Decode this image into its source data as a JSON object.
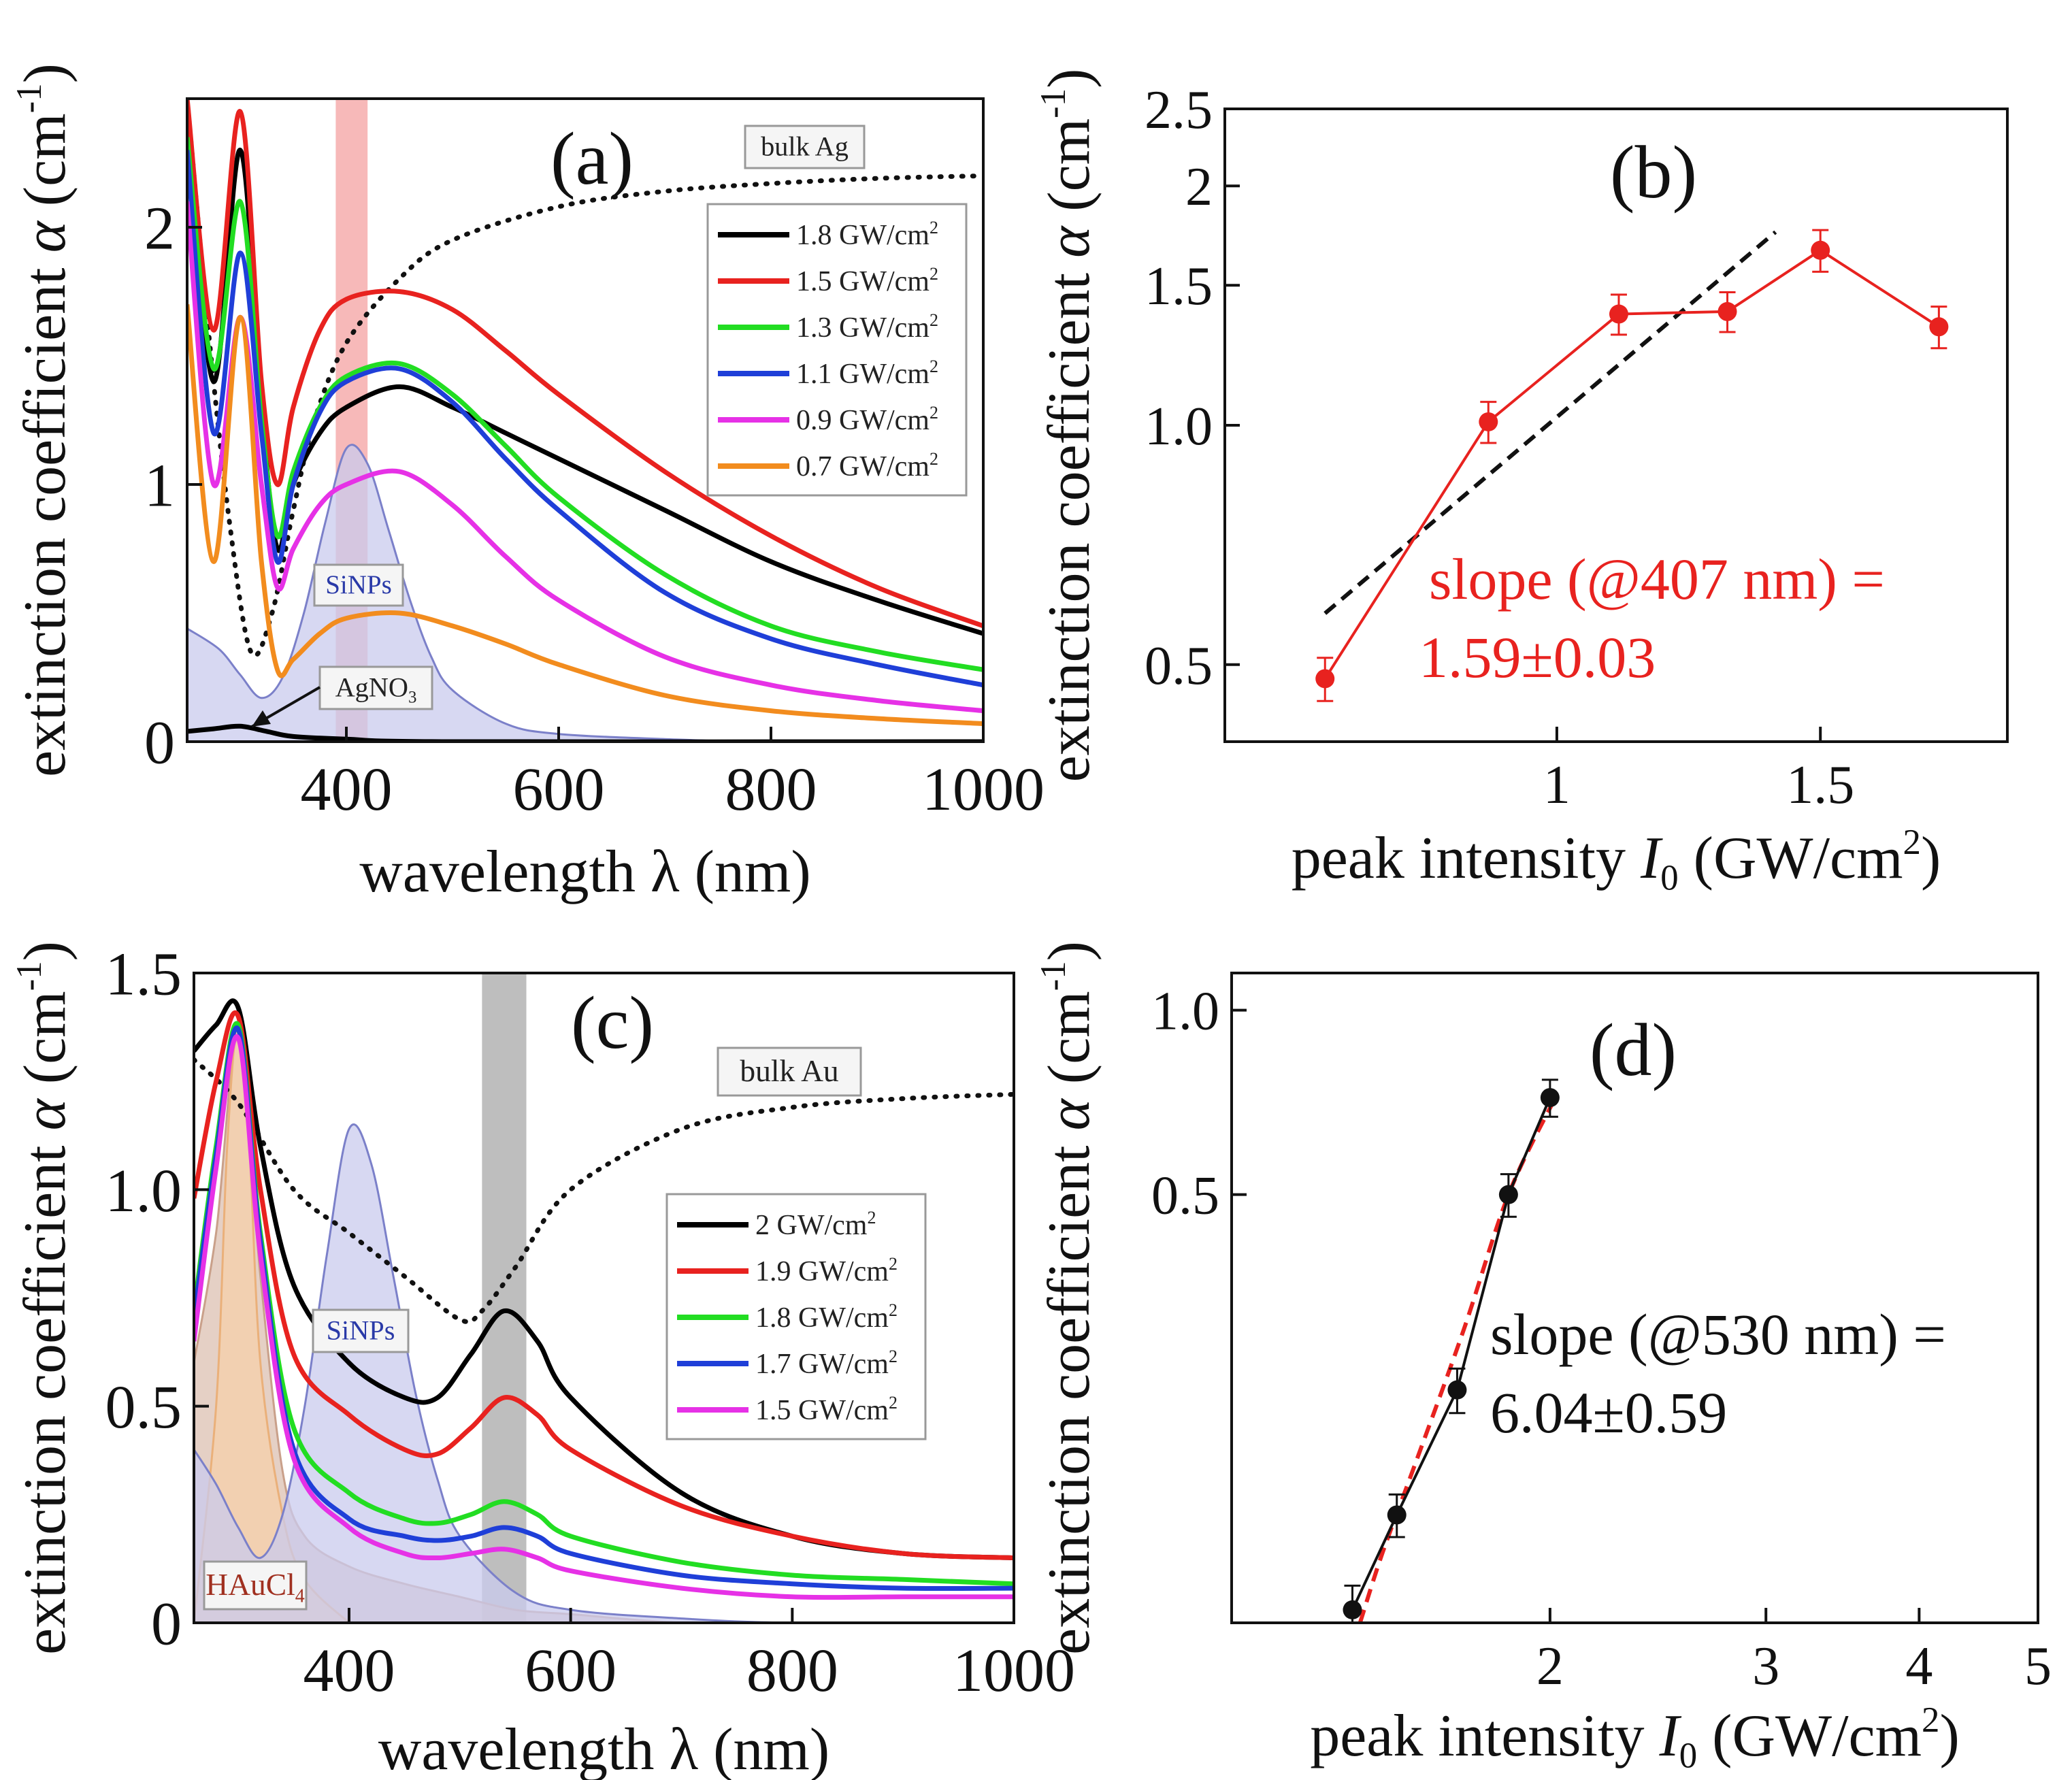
{
  "chart_data": [
    {
      "panel": "a",
      "type": "line",
      "panel_label": "(a)",
      "xlabel": "wavelength λ (nm)",
      "ylabel_main": "extinction coefficient ",
      "ylabel_italic": "α",
      "ylabel_unit": " (cm",
      "ylabel_sup": "-1",
      "ylabel_close": ")",
      "xlim": [
        250,
        1000
      ],
      "ylim": [
        0,
        2.5
      ],
      "xticks": [
        400,
        600,
        800,
        1000
      ],
      "xtick_labels": [
        "400",
        "600",
        "800",
        "1000"
      ],
      "yticks": [
        0,
        1,
        2
      ],
      "ytick_labels": [
        "0",
        "1",
        "2"
      ],
      "highlight_band": [
        390,
        420
      ],
      "highlight_color": "#f08080",
      "annotations": {
        "bulk": "bulk Ag",
        "nps": "SiNPs",
        "precursor": "AgNO",
        "precursor_sub": "3"
      },
      "reference": {
        "name": "bulk Ag",
        "style": "dotted",
        "color": "#111111",
        "x": [
          250,
          270,
          290,
          310,
          330,
          350,
          370,
          400,
          450,
          500,
          600,
          700,
          800,
          900,
          1000
        ],
        "y": [
          2.5,
          1.6,
          0.85,
          0.35,
          0.5,
          0.9,
          1.25,
          1.55,
          1.8,
          1.95,
          2.08,
          2.14,
          2.17,
          2.19,
          2.2
        ]
      },
      "filled_curves": [
        {
          "name": "SiNPs",
          "color": "#7b80c9",
          "fill": "#c9cbee",
          "x": [
            250,
            280,
            300,
            320,
            340,
            360,
            380,
            400,
            420,
            440,
            460,
            480,
            500,
            550,
            600,
            700,
            800,
            1000
          ],
          "y": [
            0.44,
            0.36,
            0.26,
            0.17,
            0.25,
            0.5,
            0.85,
            1.14,
            1.08,
            0.82,
            0.55,
            0.33,
            0.2,
            0.07,
            0.03,
            0.01,
            0.0,
            0.0
          ]
        }
      ],
      "series": [
        {
          "name": "1.8 GW/cm",
          "sup": "2",
          "color": "#000000",
          "x": [
            250,
            275,
            300,
            320,
            335,
            350,
            375,
            400,
            450,
            500,
            550,
            600,
            700,
            800,
            900,
            1000
          ],
          "y": [
            2.4,
            1.4,
            2.3,
            1.3,
            0.75,
            1.0,
            1.2,
            1.3,
            1.38,
            1.3,
            1.2,
            1.1,
            0.9,
            0.7,
            0.55,
            0.42
          ]
        },
        {
          "name": "1.5 GW/cm",
          "sup": "2",
          "color": "#e8221f",
          "x": [
            250,
            275,
            300,
            320,
            335,
            350,
            375,
            400,
            450,
            500,
            550,
            600,
            700,
            800,
            900,
            1000
          ],
          "y": [
            2.5,
            1.6,
            2.45,
            1.4,
            1.0,
            1.3,
            1.6,
            1.72,
            1.75,
            1.68,
            1.52,
            1.35,
            1.05,
            0.8,
            0.6,
            0.45
          ]
        },
        {
          "name": "1.3 GW/cm",
          "sup": "2",
          "color": "#22dd22",
          "x": [
            250,
            275,
            300,
            320,
            335,
            350,
            375,
            400,
            450,
            500,
            550,
            600,
            700,
            800,
            900,
            1000
          ],
          "y": [
            2.35,
            1.45,
            2.1,
            1.25,
            0.8,
            1.05,
            1.3,
            1.42,
            1.47,
            1.35,
            1.15,
            0.95,
            0.65,
            0.45,
            0.35,
            0.28
          ]
        },
        {
          "name": "1.1 GW/cm",
          "sup": "2",
          "color": "#1f3fd8",
          "x": [
            250,
            275,
            300,
            320,
            335,
            350,
            375,
            400,
            450,
            500,
            550,
            600,
            700,
            800,
            900,
            1000
          ],
          "y": [
            2.3,
            1.2,
            1.9,
            1.2,
            0.7,
            1.0,
            1.28,
            1.4,
            1.45,
            1.32,
            1.1,
            0.9,
            0.58,
            0.4,
            0.3,
            0.22
          ]
        },
        {
          "name": "0.9 GW/cm",
          "sup": "2",
          "color": "#e631e6",
          "x": [
            250,
            275,
            300,
            320,
            335,
            350,
            375,
            400,
            450,
            500,
            550,
            600,
            700,
            800,
            900,
            1000
          ],
          "y": [
            2.1,
            1.0,
            1.65,
            1.0,
            0.6,
            0.75,
            0.92,
            1.0,
            1.05,
            0.92,
            0.72,
            0.55,
            0.33,
            0.22,
            0.16,
            0.12
          ]
        },
        {
          "name": "0.7 GW/cm",
          "sup": "2",
          "color": "#f28c1e",
          "x": [
            250,
            275,
            300,
            320,
            335,
            350,
            375,
            400,
            450,
            500,
            550,
            600,
            700,
            800,
            900,
            1000
          ],
          "y": [
            1.7,
            0.7,
            1.65,
            0.7,
            0.28,
            0.32,
            0.42,
            0.48,
            0.5,
            0.45,
            0.38,
            0.3,
            0.18,
            0.12,
            0.09,
            0.07
          ]
        },
        {
          "name": "AgNO3",
          "color": "#000000",
          "legend": false,
          "x": [
            250,
            275,
            300,
            325,
            350,
            400,
            500,
            1000
          ],
          "y": [
            0.04,
            0.05,
            0.06,
            0.04,
            0.02,
            0.01,
            0.0,
            0.0
          ]
        }
      ]
    },
    {
      "panel": "b",
      "type": "scatter",
      "panel_label": "(b)",
      "xscale": "log",
      "yscale": "log",
      "xlabel_main": "peak intensity ",
      "xlabel_italic": "I",
      "xlabel_sub": "0",
      "xlabel_unit": " (GW/cm",
      "xlabel_sup": "2",
      "xlabel_close": ")",
      "ylabel_main": "extinction coefficient ",
      "ylabel_italic": "α",
      "ylabel_unit": " (cm",
      "ylabel_sup": "-1",
      "ylabel_close": ")",
      "xlim": [
        0.6,
        2.0
      ],
      "ylim": [
        0.4,
        2.5
      ],
      "xticks": [
        1,
        1.5
      ],
      "xtick_labels": [
        "1",
        "1.5"
      ],
      "yticks": [
        0.5,
        1.0,
        1.5,
        2,
        2.5
      ],
      "ytick_labels": [
        "0.5",
        "1.0",
        "1.5",
        "2",
        "2.5"
      ],
      "annotation": {
        "line1": "slope (@407 nm) =",
        "line2": "1.59±0.03",
        "color": "#e8221f"
      },
      "fit": {
        "x": [
          0.7,
          1.4
        ],
        "y": [
          0.58,
          1.75
        ],
        "style": "dashed",
        "color": "#111111"
      },
      "series": [
        {
          "name": "data",
          "color": "#e8221f",
          "x": [
            0.7,
            0.9,
            1.1,
            1.3,
            1.5,
            1.8
          ],
          "y": [
            0.48,
            1.01,
            1.38,
            1.39,
            1.66,
            1.33
          ],
          "err": [
            0.03,
            0.06,
            0.08,
            0.08,
            0.1,
            0.08
          ]
        }
      ]
    },
    {
      "panel": "c",
      "type": "line",
      "panel_label": "(c)",
      "xlabel": "wavelength λ (nm)",
      "ylabel_main": "extinction coefficient ",
      "ylabel_italic": "α",
      "ylabel_unit": " (cm",
      "ylabel_sup": "-1",
      "ylabel_close": ")",
      "xlim": [
        260,
        1000
      ],
      "ylim": [
        0,
        1.5
      ],
      "xticks": [
        400,
        600,
        800,
        1000
      ],
      "xtick_labels": [
        "400",
        "600",
        "800",
        "1000"
      ],
      "yticks": [
        0,
        0.5,
        1.0,
        1.5
      ],
      "ytick_labels": [
        "0",
        "0.5",
        "1.0",
        "1.5"
      ],
      "highlight_band": [
        520,
        560
      ],
      "highlight_color": "#888888",
      "annotations": {
        "bulk": "bulk Au",
        "nps": "SiNPs",
        "precursor": "HAuCl",
        "precursor_sub": "4"
      },
      "reference": {
        "name": "bulk Au",
        "style": "dotted",
        "color": "#111111",
        "x": [
          260,
          300,
          350,
          400,
          450,
          500,
          520,
          550,
          600,
          700,
          800,
          900,
          1000
        ],
        "y": [
          1.3,
          1.2,
          1.0,
          0.9,
          0.8,
          0.7,
          0.72,
          0.82,
          1.0,
          1.14,
          1.19,
          1.21,
          1.22
        ]
      },
      "filled_curves": [
        {
          "name": "HAuCl4",
          "color": "#c9a08a",
          "fill": "#dcc0b2",
          "x": [
            260,
            280,
            300,
            320,
            340,
            360,
            400,
            450,
            500,
            550,
            600,
            700,
            800,
            1000
          ],
          "y": [
            0.6,
            0.9,
            1.35,
            0.8,
            0.35,
            0.2,
            0.13,
            0.09,
            0.06,
            0.03,
            0.02,
            0.0,
            0.0,
            0.0
          ]
        },
        {
          "name": "orange",
          "color": "#eab07a",
          "fill": "#f5d0aa",
          "x": [
            260,
            280,
            290,
            300,
            310,
            320,
            340,
            360,
            400
          ],
          "y": [
            0.0,
            0.5,
            1.1,
            1.38,
            1.1,
            0.6,
            0.25,
            0.1,
            0.0
          ]
        },
        {
          "name": "SiNPs",
          "color": "#7b80c9",
          "fill": "#c9cbee",
          "x": [
            260,
            280,
            300,
            320,
            340,
            360,
            380,
            400,
            420,
            440,
            460,
            480,
            500,
            550,
            600,
            700,
            800,
            1000
          ],
          "y": [
            0.4,
            0.32,
            0.22,
            0.15,
            0.25,
            0.5,
            0.85,
            1.14,
            1.06,
            0.8,
            0.53,
            0.33,
            0.2,
            0.07,
            0.03,
            0.01,
            0.0,
            0.0
          ]
        }
      ],
      "series": [
        {
          "name": "2 GW/cm",
          "sup": "2",
          "color": "#000000",
          "x": [
            260,
            280,
            300,
            320,
            350,
            400,
            450,
            480,
            510,
            540,
            570,
            600,
            700,
            800,
            900,
            1000
          ],
          "y": [
            1.32,
            1.38,
            1.42,
            1.1,
            0.78,
            0.6,
            0.52,
            0.52,
            0.62,
            0.72,
            0.65,
            0.52,
            0.3,
            0.2,
            0.16,
            0.15
          ]
        },
        {
          "name": "1.9 GW/cm",
          "sup": "2",
          "color": "#e8221f",
          "x": [
            260,
            280,
            300,
            320,
            350,
            400,
            450,
            480,
            510,
            540,
            570,
            600,
            700,
            800,
            900,
            1000
          ],
          "y": [
            0.98,
            1.25,
            1.4,
            1.0,
            0.62,
            0.48,
            0.4,
            0.39,
            0.45,
            0.52,
            0.48,
            0.4,
            0.27,
            0.2,
            0.16,
            0.15
          ]
        },
        {
          "name": "1.8 GW/cm",
          "sup": "2",
          "color": "#22dd22",
          "x": [
            260,
            280,
            300,
            320,
            350,
            400,
            450,
            480,
            510,
            540,
            570,
            600,
            700,
            800,
            900,
            1000
          ],
          "y": [
            0.72,
            1.1,
            1.38,
            0.9,
            0.45,
            0.3,
            0.24,
            0.23,
            0.25,
            0.28,
            0.25,
            0.2,
            0.14,
            0.11,
            0.1,
            0.09
          ]
        },
        {
          "name": "1.7 GW/cm",
          "sup": "2",
          "color": "#1f3fd8",
          "x": [
            260,
            280,
            300,
            320,
            350,
            400,
            450,
            480,
            510,
            540,
            570,
            600,
            700,
            800,
            900,
            1000
          ],
          "y": [
            0.7,
            1.08,
            1.37,
            0.88,
            0.4,
            0.24,
            0.2,
            0.19,
            0.2,
            0.22,
            0.2,
            0.16,
            0.11,
            0.09,
            0.08,
            0.08
          ]
        },
        {
          "name": "1.5 GW/cm",
          "sup": "2",
          "color": "#e631e6",
          "x": [
            260,
            280,
            300,
            320,
            350,
            400,
            450,
            480,
            510,
            540,
            570,
            600,
            700,
            800,
            900,
            1000
          ],
          "y": [
            0.65,
            1.05,
            1.35,
            0.85,
            0.38,
            0.22,
            0.16,
            0.15,
            0.16,
            0.17,
            0.15,
            0.12,
            0.08,
            0.06,
            0.06,
            0.06
          ]
        }
      ]
    },
    {
      "panel": "d",
      "type": "scatter",
      "panel_label": "(d)",
      "xscale": "log",
      "yscale": "log",
      "xlabel_main": "peak intensity ",
      "xlabel_italic": "I",
      "xlabel_sub": "0",
      "xlabel_unit": " (GW/cm",
      "xlabel_sup": "2",
      "xlabel_close": ")",
      "ylabel_main": "extinction coefficient ",
      "ylabel_italic": "α",
      "ylabel_unit": " (cm",
      "ylabel_sup": "-1",
      "ylabel_close": ")",
      "xlim": [
        1.1,
        5.0
      ],
      "ylim": [
        0.1,
        1.15
      ],
      "xticks": [
        2,
        3,
        4,
        5
      ],
      "xtick_labels": [
        "2",
        "3",
        "4",
        "5"
      ],
      "yticks": [
        0.5,
        1.0
      ],
      "ytick_labels": [
        "0.5",
        "1.0"
      ],
      "annotation": {
        "line1": "slope (@530 nm) =",
        "line2": "6.04±0.59",
        "color": "#111111"
      },
      "fit": {
        "x": [
          1.4,
          1.46,
          1.55,
          1.7,
          1.85,
          2.02
        ],
        "y": [
          0.1,
          0.13,
          0.18,
          0.3,
          0.5,
          0.72
        ],
        "style": "dashed",
        "color": "#e8221f"
      },
      "series": [
        {
          "name": "data",
          "color": "#111111",
          "x": [
            1.38,
            1.5,
            1.68,
            1.85,
            2.0
          ],
          "y": [
            0.105,
            0.15,
            0.24,
            0.5,
            0.72
          ],
          "err": [
            0.01,
            0.012,
            0.02,
            0.04,
            0.05
          ]
        }
      ]
    }
  ]
}
